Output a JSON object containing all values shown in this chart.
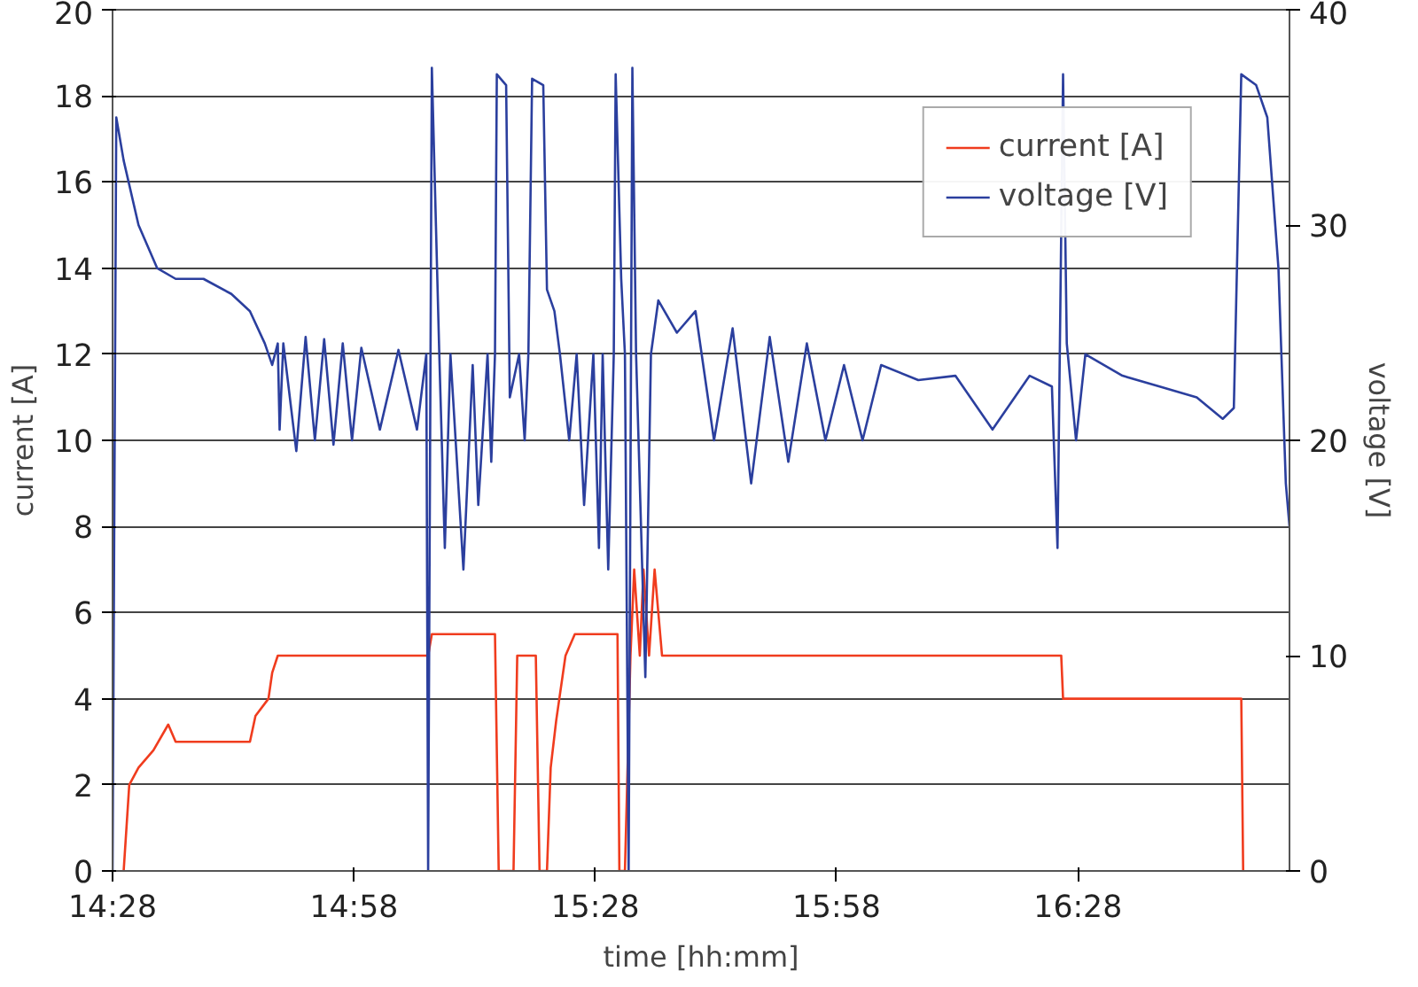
{
  "chart_data": {
    "type": "line",
    "xlabel": "time [hh:mm]",
    "ylabel": "current [A]",
    "y2label": "voltage [V]",
    "xlim": [
      14.4667,
      16.905
    ],
    "xticks": [
      {
        "value": 14.4667,
        "label": "14:28"
      },
      {
        "value": 14.9667,
        "label": "14:58"
      },
      {
        "value": 15.4667,
        "label": "15:28"
      },
      {
        "value": 15.9667,
        "label": "15:58"
      },
      {
        "value": 16.4667,
        "label": "16:28"
      }
    ],
    "ylim": [
      0,
      20
    ],
    "yticks": [
      0,
      2,
      4,
      6,
      8,
      10,
      12,
      14,
      16,
      18,
      20
    ],
    "y2lim": [
      0,
      40
    ],
    "y2ticks": [
      0,
      10,
      20,
      30,
      40
    ],
    "grid": "y",
    "legend": "top right",
    "line_style": "solid",
    "series": [
      {
        "name": "current [A]",
        "color": "#f03c1e",
        "x": [
          14.4897,
          14.5013,
          14.5205,
          14.5513,
          14.5821,
          14.5974,
          14.7513,
          14.7628,
          14.7897,
          14.7974,
          14.809,
          15.1205,
          15.1282,
          15.259,
          15.2667,
          15.2974,
          15.3051,
          15.3436,
          15.3513,
          15.3667,
          15.3744,
          15.3859,
          15.4051,
          15.4244,
          15.5128,
          15.5167,
          15.5282,
          15.5397,
          15.5474,
          15.559,
          15.5667,
          15.5782,
          15.5897,
          15.6051,
          16.4321,
          16.4359,
          16.8051,
          16.809
        ],
        "values": [
          0,
          2.0,
          2.4,
          2.8,
          3.4,
          3.0,
          3.0,
          3.6,
          4.0,
          4.6,
          5.0,
          5.0,
          5.5,
          5.5,
          0,
          0,
          5.0,
          5.0,
          0,
          0,
          2.4,
          3.5,
          5.0,
          5.5,
          5.5,
          0,
          0,
          5.0,
          7.0,
          5.0,
          7.0,
          5.0,
          7.0,
          5.0,
          5.0,
          4.0,
          4.0,
          0
        ]
      },
      {
        "name": "voltage [V]",
        "color": "#2b3f9e",
        "axis": "y2",
        "x": [
          14.4667,
          14.4744,
          14.4897,
          14.5205,
          14.559,
          14.5974,
          14.6551,
          14.7128,
          14.7513,
          14.7821,
          14.7974,
          14.809,
          14.8128,
          14.8205,
          14.8474,
          14.8667,
          14.8859,
          14.9051,
          14.9244,
          14.9436,
          14.9628,
          14.9821,
          15.0205,
          15.059,
          15.0974,
          15.1167,
          15.1205,
          15.1282,
          15.1436,
          15.1551,
          15.1667,
          15.1936,
          15.2128,
          15.2244,
          15.2436,
          15.2513,
          15.259,
          15.2628,
          15.2821,
          15.2897,
          15.309,
          15.3205,
          15.3282,
          15.3359,
          15.359,
          15.3667,
          15.3821,
          15.3936,
          15.4128,
          15.4282,
          15.4436,
          15.4628,
          15.4744,
          15.4821,
          15.4936,
          15.5051,
          15.509,
          15.5205,
          15.5282,
          15.5359,
          15.5436,
          15.5513,
          15.5705,
          15.5821,
          15.5974,
          15.6359,
          15.6744,
          15.7128,
          15.7513,
          15.7897,
          15.8282,
          15.8667,
          15.9051,
          15.9436,
          15.9821,
          16.0205,
          16.059,
          16.1359,
          16.2128,
          16.2897,
          16.3667,
          16.4128,
          16.4244,
          16.4359,
          16.4436,
          16.4628,
          16.4821,
          16.559,
          16.6359,
          16.7128,
          16.7667,
          16.7897,
          16.8051,
          16.8359,
          16.859,
          16.8821,
          16.8974,
          16.905
        ],
        "values": [
          0,
          35,
          33,
          30,
          28,
          27.5,
          27.5,
          26.8,
          26,
          24.5,
          23.5,
          24.5,
          20.5,
          24.5,
          19.5,
          24.8,
          20,
          24.7,
          19.8,
          24.5,
          20,
          24.3,
          20.5,
          24.2,
          20.5,
          24,
          0,
          37.3,
          24,
          15,
          24,
          14,
          23.5,
          17,
          24,
          19,
          24,
          37,
          36.5,
          22,
          24,
          20,
          24,
          36.8,
          36.5,
          27,
          26,
          24,
          20,
          24,
          17,
          24,
          15,
          24,
          14,
          24,
          37,
          27.5,
          24,
          0,
          37.3,
          24,
          9,
          24,
          26.5,
          25,
          26,
          20,
          25.2,
          18,
          24.8,
          19,
          24.5,
          20,
          23.5,
          20,
          23.5,
          22.8,
          23,
          20.5,
          23,
          22.5,
          15,
          37,
          24.5,
          20,
          24,
          23,
          22.5,
          22,
          21,
          21.5,
          37,
          36.5,
          35,
          28,
          18,
          16
        ]
      }
    ]
  }
}
